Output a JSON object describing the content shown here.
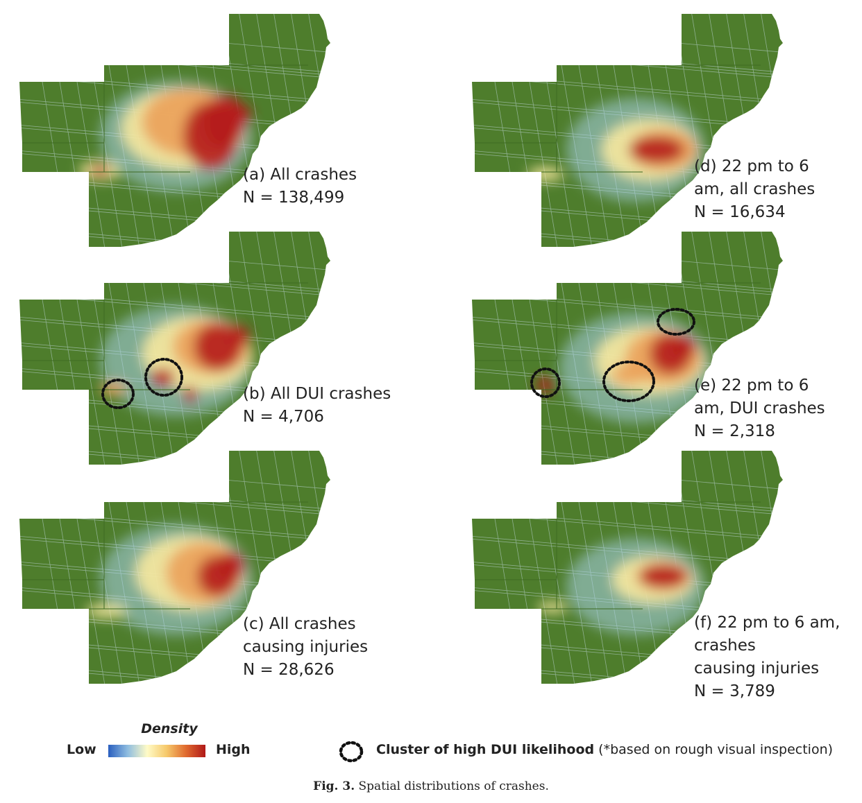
{
  "panels": [
    {
      "id": "a",
      "lines": [
        "(a) All crashes",
        "N = 138,499"
      ]
    },
    {
      "id": "b",
      "lines": [
        "(b) All DUI crashes",
        "N = 4,706"
      ]
    },
    {
      "id": "c",
      "lines": [
        "(c) All crashes",
        "causing injuries",
        "N = 28,626"
      ]
    },
    {
      "id": "d",
      "lines": [
        "(d) 22 pm to 6",
        "am, all crashes",
        "N = 16,634"
      ]
    },
    {
      "id": "e",
      "lines": [
        "(e) 22 pm to 6",
        "am, DUI crashes",
        "N = 2,318"
      ]
    },
    {
      "id": "f",
      "lines": [
        "(f) 22 pm to 6 am,",
        "crashes",
        "causing injuries",
        "N = 3,789"
      ]
    }
  ],
  "legend": {
    "density_title": "Density",
    "low": "Low",
    "high": "High",
    "gradient_colors": [
      "#2a5fbf",
      "#8fbde0",
      "#fffbc7",
      "#f6c96b",
      "#e06a2f",
      "#b01818"
    ],
    "cluster_label": "Cluster of high DUI likelihood",
    "cluster_note": " (*based on rough visual inspection)"
  },
  "caption": {
    "label": "Fig. 3.",
    "text": " Spatial distributions of crashes."
  },
  "colors": {
    "land": "#4e7d2c",
    "roads": "#cfe4f2",
    "low": "#a8d2e8",
    "mid": "#f7e9a0",
    "orange": "#eba15a",
    "high": "#b51d1d"
  }
}
